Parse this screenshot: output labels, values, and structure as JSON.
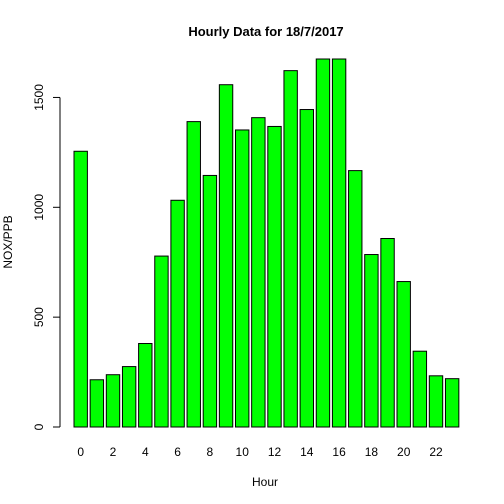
{
  "chart_data": {
    "type": "bar",
    "title": "Hourly Data for 18/7/2017",
    "xlabel": "Hour",
    "ylabel": "NOX/PPB",
    "bar_color": "#00ff00",
    "categories": [
      0,
      1,
      2,
      3,
      4,
      5,
      6,
      7,
      8,
      9,
      10,
      11,
      12,
      13,
      14,
      15,
      16,
      17,
      18,
      19,
      20,
      21,
      22,
      23
    ],
    "x_tick_labels": [
      "0",
      "2",
      "4",
      "6",
      "8",
      "10",
      "12",
      "14",
      "16",
      "18",
      "20",
      "22"
    ],
    "y_ticks": [
      0,
      500,
      1000,
      1500
    ],
    "values": [
      1255,
      215,
      238,
      275,
      380,
      778,
      1032,
      1390,
      1145,
      1558,
      1352,
      1408,
      1368,
      1622,
      1445,
      1675,
      1675,
      1167,
      785,
      858,
      662,
      345,
      233,
      220
    ],
    "ylim": [
      0,
      1675
    ]
  }
}
